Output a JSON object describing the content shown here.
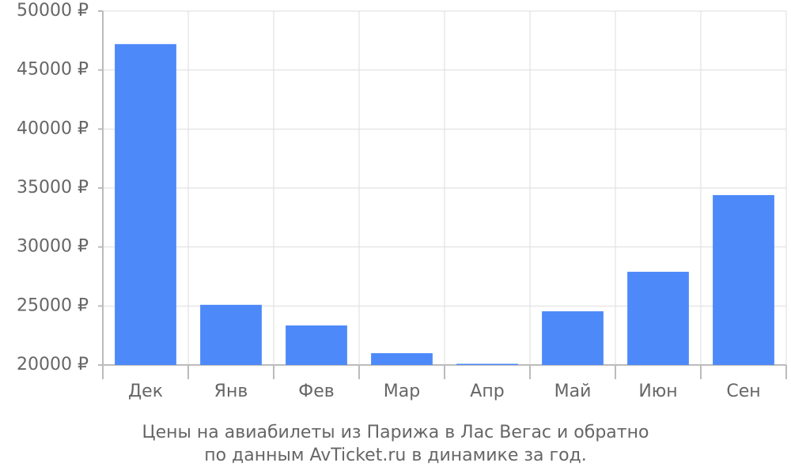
{
  "chart_data": {
    "type": "bar",
    "title": [
      "Цены на авиабилеты из Парижа в Лас Вегас и обратно",
      "по данным AvTicket.ru в динамике за год."
    ],
    "categories": [
      "Дек",
      "Янв",
      "Фев",
      "Мар",
      "Апр",
      "Май",
      "Июн",
      "Сен"
    ],
    "values": [
      47200,
      25100,
      23350,
      21000,
      20100,
      24550,
      27900,
      34400
    ],
    "color": "#4d89f9",
    "ylim": [
      20000,
      50000
    ],
    "yticks": [
      {
        "value": 20000,
        "label": "20000 ₽"
      },
      {
        "value": 25000,
        "label": "25000 ₽"
      },
      {
        "value": 30000,
        "label": "30000 ₽"
      },
      {
        "value": 35000,
        "label": "35000 ₽"
      },
      {
        "value": 40000,
        "label": "40000 ₽"
      },
      {
        "value": 45000,
        "label": "45000 ₽"
      },
      {
        "value": 50000,
        "label": "50000 ₽"
      }
    ],
    "grid": true
  }
}
